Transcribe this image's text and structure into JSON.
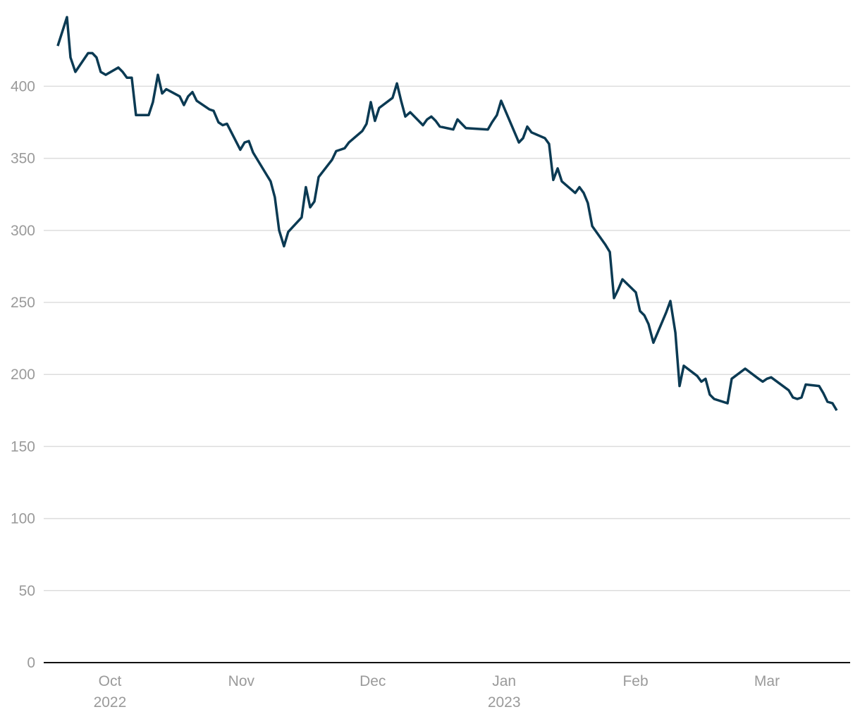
{
  "chart_data": {
    "type": "line",
    "x": [
      -0.397,
      -0.327,
      -0.3,
      -0.263,
      -0.166,
      -0.134,
      -0.102,
      -0.07,
      -0.032,
      0.064,
      0.097,
      0.129,
      0.166,
      0.198,
      0.295,
      0.327,
      0.365,
      0.397,
      0.429,
      0.531,
      0.563,
      0.595,
      0.628,
      0.66,
      0.756,
      0.789,
      0.826,
      0.858,
      0.891,
      0.992,
      1.025,
      1.057,
      1.089,
      1.223,
      1.255,
      1.288,
      1.325,
      1.357,
      1.459,
      1.491,
      1.524,
      1.556,
      1.588,
      1.69,
      1.722,
      1.754,
      1.786,
      1.819,
      1.921,
      1.953,
      1.985,
      2.017,
      2.049,
      2.151,
      2.184,
      2.216,
      2.248,
      2.285,
      2.382,
      2.414,
      2.446,
      2.479,
      2.511,
      2.613,
      2.645,
      2.677,
      2.709,
      2.876,
      2.908,
      2.945,
      2.977,
      3.112,
      3.144,
      3.176,
      3.208,
      3.31,
      3.342,
      3.374,
      3.407,
      3.439,
      3.541,
      3.573,
      3.605,
      3.637,
      3.67,
      3.771,
      3.804,
      3.836,
      3.868,
      3.9,
      4.002,
      4.034,
      4.067,
      4.099,
      4.136,
      4.233,
      4.265,
      4.303,
      4.335,
      4.367,
      4.469,
      4.501,
      4.533,
      4.565,
      4.598,
      4.7,
      4.732,
      4.834,
      4.936,
      4.968,
      5.0,
      5.032,
      5.166,
      5.198,
      5.231,
      5.263,
      5.295,
      5.397,
      5.429,
      5.461,
      5.499,
      5.531
    ],
    "series": [
      {
        "color": "#0b3a53",
        "values": [
          428,
          448,
          420,
          410,
          423,
          423,
          420,
          410,
          408,
          413,
          410,
          406,
          406,
          380,
          380,
          389,
          408,
          395,
          398,
          393,
          387,
          393,
          396,
          390,
          384,
          383,
          375,
          373,
          374,
          356,
          361,
          362,
          354,
          334,
          323,
          300,
          289,
          299,
          309,
          330,
          316,
          320,
          337,
          349,
          355,
          356,
          357,
          361,
          369,
          374,
          389,
          376,
          385,
          392,
          402,
          390,
          379,
          382,
          373,
          377,
          379,
          376,
          372,
          370,
          377,
          374,
          371,
          370,
          375,
          380,
          390,
          361,
          364,
          372,
          368,
          364,
          360,
          335,
          343,
          334,
          326,
          330,
          326,
          319,
          303,
          290,
          285,
          253,
          259,
          266,
          257,
          244,
          241,
          235,
          222,
          243,
          251,
          229,
          192,
          206,
          199,
          195,
          197,
          186,
          183,
          180,
          197,
          204,
          197,
          195,
          197,
          198,
          189,
          184,
          183,
          184,
          193,
          192,
          187,
          181,
          180,
          175
        ]
      }
    ],
    "xlim": [
      -0.504,
      5.633
    ],
    "xticks": [
      {
        "value": 0,
        "label": [
          "Oct",
          "2022"
        ]
      },
      {
        "value": 1,
        "label": [
          "Nov"
        ]
      },
      {
        "value": 2,
        "label": [
          "Dec"
        ]
      },
      {
        "value": 3,
        "label": [
          "Jan",
          "2023"
        ]
      },
      {
        "value": 4,
        "label": [
          "Feb"
        ]
      },
      {
        "value": 5,
        "label": [
          "Mar"
        ]
      }
    ],
    "ylim": [
      0,
      455
    ],
    "yticks": [
      0,
      50,
      100,
      150,
      200,
      250,
      300,
      350,
      400
    ],
    "grid": true
  }
}
